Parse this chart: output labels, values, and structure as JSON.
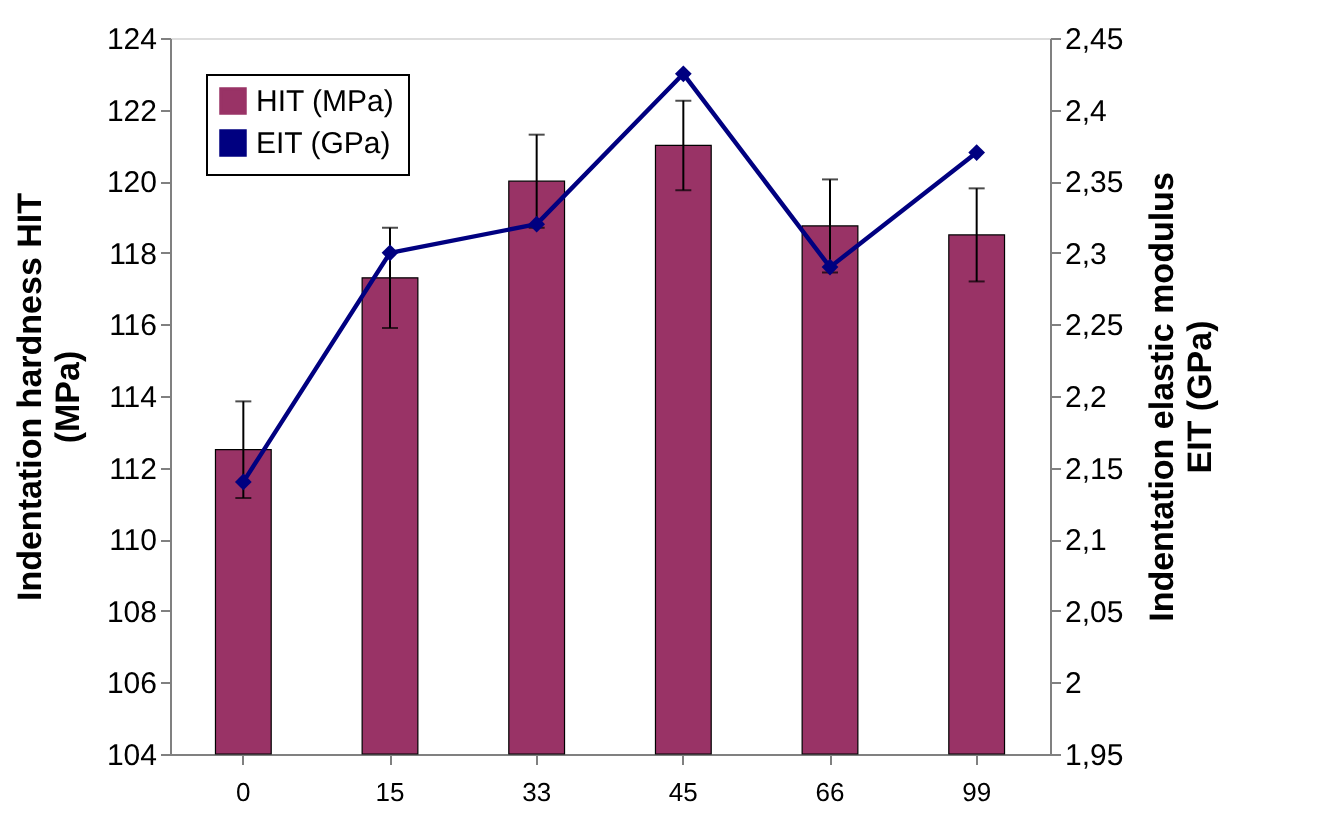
{
  "chart_data": {
    "type": "bar",
    "categories": [
      "0",
      "15",
      "33",
      "45",
      "66",
      "99"
    ],
    "ylabel": "Indentation hardness HIT\n(MPa)",
    "y2label": "Indentation elastic modulus\nEIT (GPa)",
    "series": [
      {
        "name": "HIT (MPa)",
        "color": "#993366",
        "values": [
          112.5,
          117.3,
          120.0,
          121.0,
          118.75,
          118.5
        ],
        "errors": [
          1.35,
          1.4,
          1.3,
          1.25,
          1.3,
          1.3
        ]
      },
      {
        "name": "EIT (GPa)",
        "type": "line",
        "axis": "y2",
        "color": "#000080",
        "marker": "diamond",
        "values": [
          2.14,
          2.3,
          2.32,
          2.425,
          2.29,
          2.37
        ]
      }
    ],
    "ylim": [
      104,
      124
    ],
    "yticks": [
      104,
      106,
      108,
      110,
      112,
      114,
      116,
      118,
      120,
      122,
      124
    ],
    "y2lim": [
      1.95,
      2.45
    ],
    "y2ticks": [
      {
        "value": 1.95,
        "label": "1,95"
      },
      {
        "value": 2.0,
        "label": "2"
      },
      {
        "value": 2.05,
        "label": "2,05"
      },
      {
        "value": 2.1,
        "label": "2,1"
      },
      {
        "value": 2.15,
        "label": "2,15"
      },
      {
        "value": 2.2,
        "label": "2,2"
      },
      {
        "value": 2.25,
        "label": "2,25"
      },
      {
        "value": 2.3,
        "label": "2,3"
      },
      {
        "value": 2.35,
        "label": "2,35"
      },
      {
        "value": 2.4,
        "label": "2,4"
      },
      {
        "value": 2.45,
        "label": "2,45"
      }
    ],
    "grid": false,
    "legend": "top left"
  }
}
